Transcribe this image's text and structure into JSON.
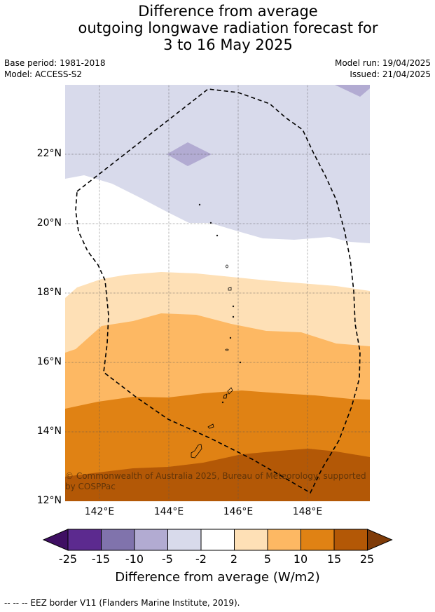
{
  "title": {
    "line1": "Difference from average",
    "line2": "outgoing longwave radiation forecast for",
    "line3": "3 to 16 May 2025"
  },
  "meta": {
    "base_period": "Base period: 1981-2018",
    "model": "Model: ACCESS-S2",
    "model_run": "Model run: 19/04/2025",
    "issued": "Issued: 21/04/2025"
  },
  "map": {
    "lat_labels": [
      "22°N",
      "20°N",
      "18°N",
      "16°N",
      "14°N",
      "12°N"
    ],
    "lon_labels": [
      "142°E",
      "144°E",
      "146°E",
      "148°E"
    ],
    "lat_range": [
      12,
      24
    ],
    "lon_range": [
      141,
      149.8
    ],
    "copyright": "© Commonwealth of Australia 2025, Bureau of Meteorology, supported by COSPPac"
  },
  "colorbar": {
    "title": "Difference from average (W/m2)",
    "ticks": [
      "-25",
      "-15",
      "-10",
      "-5",
      "-2",
      "2",
      "5",
      "10",
      "15",
      "25"
    ],
    "colors": [
      "#3f0f63",
      "#5c2a8f",
      "#8073ac",
      "#b2abd2",
      "#d8daeb",
      "#ffffff",
      "#fee0b6",
      "#fdb863",
      "#e08214",
      "#b35806",
      "#7f3b08"
    ]
  },
  "footnote": "--  --  -- EEZ border V11 (Flanders Marine Institute, 2019)."
}
